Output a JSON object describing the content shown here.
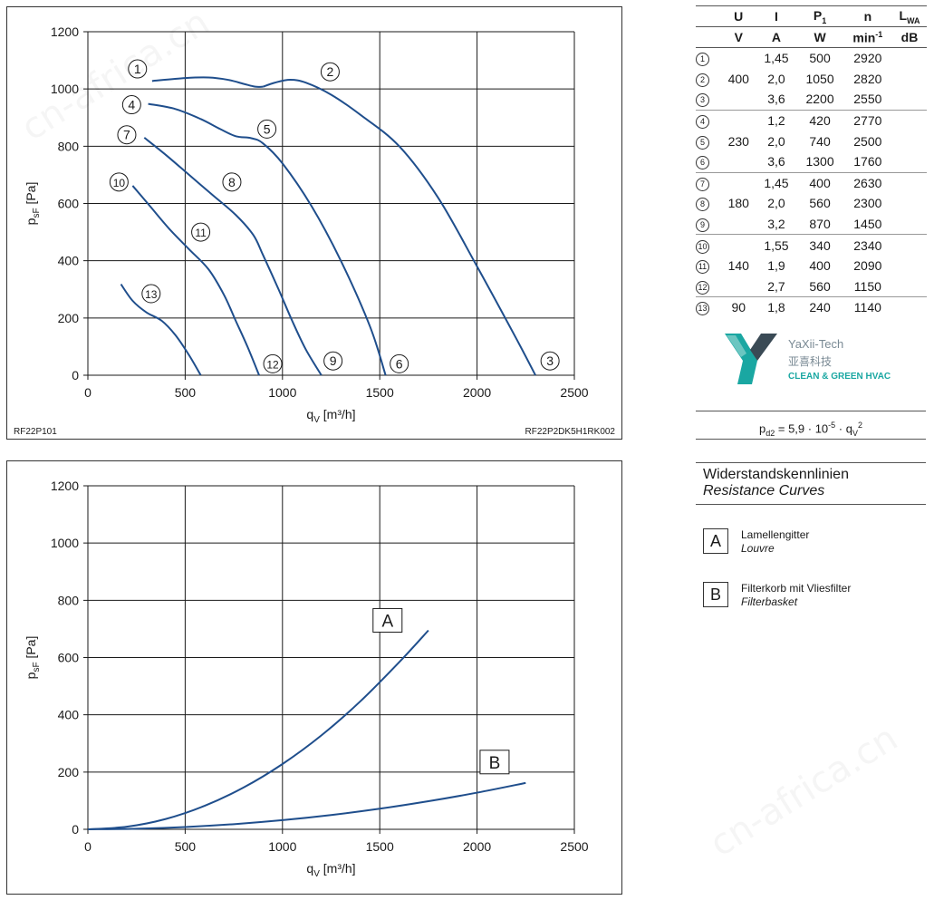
{
  "chart_data": [
    {
      "type": "line",
      "name": "fan-curves",
      "xlabel": "q",
      "xlabel_sub": "V",
      "xlabel_unit": "[m³/h]",
      "ylabel": "p",
      "ylabel_sub": "sF",
      "ylabel_unit": "[Pa]",
      "xlim": [
        0,
        2500
      ],
      "ylim": [
        0,
        1200
      ],
      "xticks": [
        "0",
        "500",
        "1000",
        "1500",
        "2000",
        "2500"
      ],
      "yticks": [
        "0",
        "200",
        "400",
        "600",
        "800",
        "1000",
        "1200"
      ],
      "grid": true,
      "footer_left": "RF22P101",
      "footer_right": "RF22P2DK5H1RK002",
      "series": [
        {
          "id": "1",
          "x": [
            330,
            500,
            620,
            720,
            800,
            860,
            900
          ],
          "y": [
            1028,
            1038,
            1040,
            1032,
            1018,
            1008,
            1008
          ]
        },
        {
          "id": "2",
          "x": [
            900,
            960,
            1040,
            1120,
            1250,
            1400,
            1600,
            1800,
            2000,
            2200,
            2300
          ],
          "y": [
            1008,
            1022,
            1032,
            1022,
            980,
            910,
            800,
            620,
            380,
            130,
            0
          ]
        },
        {
          "id": "4",
          "x": [
            310,
            450,
            580,
            680,
            760,
            840,
            900,
            1000,
            1150,
            1300,
            1450,
            1530
          ],
          "y": [
            948,
            930,
            895,
            860,
            835,
            828,
            810,
            740,
            590,
            400,
            170,
            0
          ]
        },
        {
          "id": "7",
          "x": [
            290,
            400,
            520,
            640,
            760,
            850,
            900,
            980,
            1050,
            1120,
            1200
          ],
          "y": [
            830,
            770,
            700,
            630,
            560,
            490,
            420,
            300,
            190,
            90,
            0
          ]
        },
        {
          "id": "10",
          "x": [
            230,
            320,
            420,
            520,
            620,
            700,
            760,
            820,
            880
          ],
          "y": [
            662,
            590,
            510,
            440,
            370,
            280,
            190,
            100,
            0
          ]
        },
        {
          "id": "13",
          "x": [
            170,
            230,
            300,
            380,
            450,
            520,
            580
          ],
          "y": [
            318,
            260,
            220,
            190,
            140,
            70,
            0
          ]
        }
      ],
      "circle_labels": [
        {
          "id": "1",
          "x": 255,
          "y": 1070
        },
        {
          "id": "2",
          "x": 1245,
          "y": 1060
        },
        {
          "id": "3",
          "x": 2375,
          "y": 50
        },
        {
          "id": "4",
          "x": 225,
          "y": 945
        },
        {
          "id": "5",
          "x": 920,
          "y": 860
        },
        {
          "id": "6",
          "x": 1600,
          "y": 40
        },
        {
          "id": "7",
          "x": 200,
          "y": 840
        },
        {
          "id": "8",
          "x": 740,
          "y": 675
        },
        {
          "id": "9",
          "x": 1260,
          "y": 50
        },
        {
          "id": "10",
          "x": 160,
          "y": 675
        },
        {
          "id": "11",
          "x": 580,
          "y": 500
        },
        {
          "id": "12",
          "x": 950,
          "y": 40
        },
        {
          "id": "13",
          "x": 325,
          "y": 285
        }
      ]
    },
    {
      "type": "line",
      "name": "resistance-curves",
      "xlabel": "q",
      "xlabel_sub": "V",
      "xlabel_unit": "[m³/h]",
      "ylabel": "p",
      "ylabel_sub": "sF",
      "ylabel_unit": "[Pa]",
      "xlim": [
        0,
        2500
      ],
      "ylim": [
        0,
        1200
      ],
      "xticks": [
        "0",
        "500",
        "1000",
        "1500",
        "2000",
        "2500"
      ],
      "yticks": [
        "0",
        "200",
        "400",
        "600",
        "800",
        "1000",
        "1200"
      ],
      "grid": true,
      "series": [
        {
          "id": "A",
          "x": [
            0,
            200,
            400,
            600,
            800,
            1000,
            1200,
            1400,
            1600,
            1750
          ],
          "y": [
            0,
            9,
            36,
            82,
            146,
            228,
            328,
            447,
            584,
            695
          ]
        },
        {
          "id": "B",
          "x": [
            0,
            250,
            500,
            750,
            1000,
            1250,
            1500,
            1750,
            2000,
            2250
          ],
          "y": [
            0,
            2,
            8,
            18,
            32,
            50,
            72,
            98,
            128,
            162
          ]
        }
      ],
      "box_labels": [
        {
          "id": "A",
          "x": 1540,
          "y": 730
        },
        {
          "id": "B",
          "x": 2090,
          "y": 235
        }
      ]
    }
  ],
  "line_color": "#1f4e8c",
  "table": {
    "headers": [
      "U",
      "I",
      "P",
      "n",
      "L"
    ],
    "header_subs": [
      "",
      "",
      "1",
      "",
      "WA"
    ],
    "units": [
      "V",
      "A",
      "W",
      "min",
      "dB"
    ],
    "unit_sups": [
      "",
      "",
      "",
      "-1",
      ""
    ],
    "groups": [
      {
        "U": "400",
        "rows": [
          {
            "idx": "1",
            "I": "1,45",
            "P": "500",
            "n": "2920"
          },
          {
            "idx": "2",
            "I": "2,0",
            "P": "1050",
            "n": "2820"
          },
          {
            "idx": "3",
            "I": "3,6",
            "P": "2200",
            "n": "2550"
          }
        ]
      },
      {
        "U": "230",
        "rows": [
          {
            "idx": "4",
            "I": "1,2",
            "P": "420",
            "n": "2770"
          },
          {
            "idx": "5",
            "I": "2,0",
            "P": "740",
            "n": "2500"
          },
          {
            "idx": "6",
            "I": "3,6",
            "P": "1300",
            "n": "1760"
          }
        ]
      },
      {
        "U": "180",
        "rows": [
          {
            "idx": "7",
            "I": "1,45",
            "P": "400",
            "n": "2630"
          },
          {
            "idx": "8",
            "I": "2,0",
            "P": "560",
            "n": "2300"
          },
          {
            "idx": "9",
            "I": "3,2",
            "P": "870",
            "n": "1450"
          }
        ]
      },
      {
        "U": "140",
        "rows": [
          {
            "idx": "10",
            "I": "1,55",
            "P": "340",
            "n": "2340"
          },
          {
            "idx": "11",
            "I": "1,9",
            "P": "400",
            "n": "2090"
          },
          {
            "idx": "12",
            "I": "2,7",
            "P": "560",
            "n": "1150"
          }
        ]
      },
      {
        "U": "90",
        "rows": [
          {
            "idx": "13",
            "I": "1,8",
            "P": "240",
            "n": "1140"
          }
        ]
      }
    ]
  },
  "logo": {
    "line1": "YaXii-Tech",
    "line2": "亚喜科技",
    "line3": "CLEAN & GREEN HVAC",
    "color_dark": "#3a4a55",
    "color_teal": "#1aa7a2"
  },
  "formula": {
    "p": "p",
    "p_sub": "d2",
    "eq": " = 5,9 · 10",
    "exp": "-5",
    "dot": " · q",
    "q_sub": "V",
    "q_sup": "2"
  },
  "resistance": {
    "title_de": "Widerstandskennlinien",
    "title_en": "Resistance Curves"
  },
  "legend": [
    {
      "key": "A",
      "de": "Lamellengitter",
      "en": "Louvre"
    },
    {
      "key": "B",
      "de": "Filterkorb mit Vliesfilter",
      "en": "Filterbasket"
    }
  ],
  "watermark": "cn-africa.cn"
}
